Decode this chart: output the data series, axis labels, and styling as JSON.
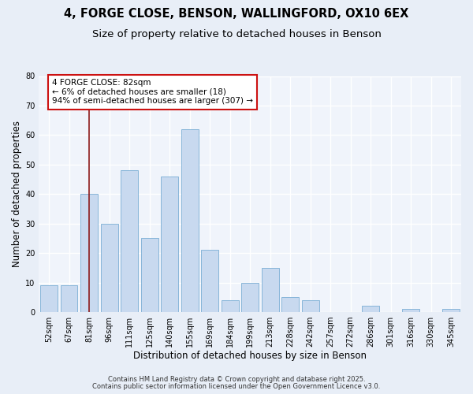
{
  "title1": "4, FORGE CLOSE, BENSON, WALLINGFORD, OX10 6EX",
  "title2": "Size of property relative to detached houses in Benson",
  "xlabel": "Distribution of detached houses by size in Benson",
  "ylabel": "Number of detached properties",
  "bar_labels": [
    "52sqm",
    "67sqm",
    "81sqm",
    "96sqm",
    "111sqm",
    "125sqm",
    "140sqm",
    "155sqm",
    "169sqm",
    "184sqm",
    "199sqm",
    "213sqm",
    "228sqm",
    "242sqm",
    "257sqm",
    "272sqm",
    "286sqm",
    "301sqm",
    "316sqm",
    "330sqm",
    "345sqm"
  ],
  "bar_values": [
    9,
    9,
    40,
    30,
    48,
    25,
    46,
    62,
    21,
    4,
    10,
    15,
    5,
    4,
    0,
    0,
    2,
    0,
    1,
    0,
    1
  ],
  "bar_color": "#c8d9ef",
  "bar_edge_color": "#7aadd4",
  "vline_x_index": 2,
  "vline_color": "#8b1a1a",
  "annotation_title": "4 FORGE CLOSE: 82sqm",
  "annotation_line1": "← 6% of detached houses are smaller (18)",
  "annotation_line2": "94% of semi-detached houses are larger (307) →",
  "annotation_box_facecolor": "#ffffff",
  "annotation_box_edgecolor": "#cc1111",
  "ylim": [
    0,
    80
  ],
  "yticks": [
    0,
    10,
    20,
    30,
    40,
    50,
    60,
    70,
    80
  ],
  "footer1": "Contains HM Land Registry data © Crown copyright and database right 2025.",
  "footer2": "Contains public sector information licensed under the Open Government Licence v3.0.",
  "bg_color": "#e8eef7",
  "plot_bg_color": "#f0f4fb",
  "grid_color": "#ffffff",
  "title_fontsize": 10.5,
  "subtitle_fontsize": 9.5,
  "tick_fontsize": 7,
  "axis_label_fontsize": 8.5,
  "footer_fontsize": 6,
  "annotation_fontsize": 7.5
}
